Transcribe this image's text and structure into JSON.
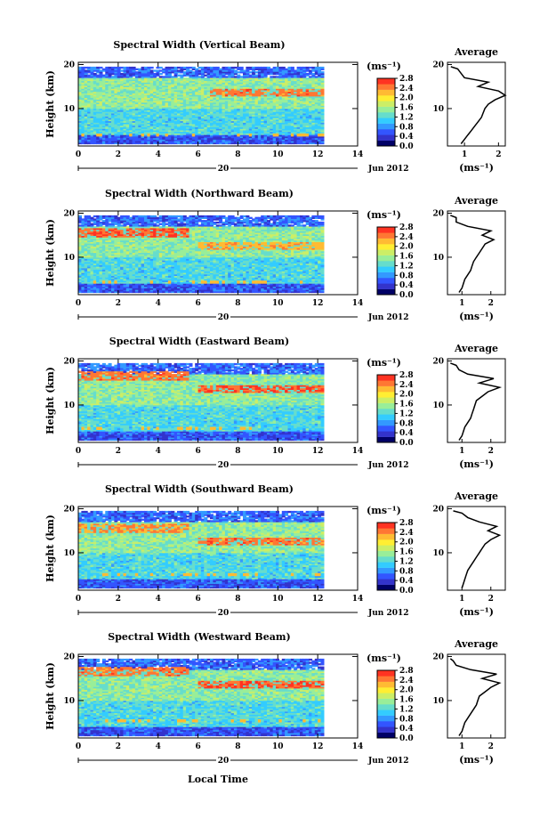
{
  "figure": {
    "xlabel": "Local Time",
    "date_label": "20",
    "month_year_label": "Jun 2012",
    "unit_label": "(ms⁻¹)",
    "ylabel": "Height (km)",
    "average_title": "Average",
    "average_xlabel": "(ms⁻¹)"
  },
  "colors": {
    "colormap": [
      "#000066",
      "#3333cc",
      "#3355ff",
      "#3399ff",
      "#33ccff",
      "#66ddcc",
      "#99ee99",
      "#ccee66",
      "#ffee33",
      "#ffbb33",
      "#ff7733",
      "#ff3322"
    ],
    "profile_line": "#000000"
  },
  "chart_data": [
    {
      "type": "heatmap",
      "title": "Spectral Width (Vertical Beam)",
      "xlabel": "Local Time",
      "ylabel": "Height (km)",
      "xlim": [
        0,
        14
      ],
      "ylim": [
        1.5,
        20.5
      ],
      "x_ticks": [
        0,
        2,
        4,
        6,
        8,
        10,
        12,
        14
      ],
      "y_ticks": [
        10,
        20
      ],
      "data_x_range": [
        0,
        12.3
      ],
      "data_y_range": [
        2,
        19.5
      ],
      "colorbar": {
        "label": "(ms⁻¹)",
        "range": [
          0.0,
          2.8
        ],
        "ticks": [
          0.0,
          0.4,
          0.8,
          1.2,
          1.6,
          2.0,
          2.4,
          2.8
        ]
      },
      "enhanced_layers": [
        {
          "y": 13.5,
          "x_start": 6.5,
          "x_end": 12.3,
          "value": 2.6
        }
      ],
      "average_profile": {
        "xlim": [
          0.5,
          2.2
        ],
        "x_ticks": [
          1,
          2
        ],
        "y_ticks": [
          10,
          20
        ],
        "height": [
          2,
          3,
          4,
          5,
          6,
          7,
          8,
          9,
          10,
          11,
          12,
          13,
          14,
          15,
          16,
          17,
          18,
          19,
          19.5
        ],
        "value": [
          0.9,
          1.0,
          1.1,
          1.2,
          1.3,
          1.4,
          1.5,
          1.55,
          1.6,
          1.7,
          1.9,
          2.2,
          2.0,
          1.4,
          1.7,
          1.0,
          0.9,
          0.8,
          0.6
        ]
      }
    },
    {
      "type": "heatmap",
      "title": "Spectral Width (Northward Beam)",
      "xlabel": "Local Time",
      "ylabel": "Height (km)",
      "xlim": [
        0,
        14
      ],
      "ylim": [
        1.5,
        20.5
      ],
      "x_ticks": [
        0,
        2,
        4,
        6,
        8,
        10,
        12,
        14
      ],
      "y_ticks": [
        10,
        20
      ],
      "data_x_range": [
        0,
        12.3
      ],
      "data_y_range": [
        2,
        19.5
      ],
      "colorbar": {
        "label": "(ms⁻¹)",
        "range": [
          0.0,
          2.8
        ],
        "ticks": [
          0.0,
          0.4,
          0.8,
          1.2,
          1.6,
          2.0,
          2.4,
          2.8
        ]
      },
      "enhanced_layers": [
        {
          "y": 15.5,
          "x_start": 0,
          "x_end": 5.5,
          "value": 2.7
        },
        {
          "y": 12.5,
          "x_start": 6,
          "x_end": 12.3,
          "value": 2.4
        }
      ],
      "average_profile": {
        "xlim": [
          0.5,
          2.5
        ],
        "x_ticks": [
          1,
          2
        ],
        "y_ticks": [
          10,
          20
        ],
        "height": [
          2,
          3,
          4,
          5,
          6,
          7,
          8,
          9,
          10,
          11,
          12,
          13,
          14,
          15,
          16,
          17,
          18,
          19,
          19.5
        ],
        "value": [
          0.9,
          1.0,
          1.05,
          1.1,
          1.2,
          1.3,
          1.35,
          1.4,
          1.5,
          1.6,
          1.7,
          1.8,
          2.1,
          1.7,
          2.0,
          1.2,
          0.8,
          0.8,
          0.6
        ]
      }
    },
    {
      "type": "heatmap",
      "title": "Spectral Width (Eastward Beam)",
      "xlabel": "Local Time",
      "ylabel": "Height (km)",
      "xlim": [
        0,
        14
      ],
      "ylim": [
        1.5,
        20.5
      ],
      "x_ticks": [
        0,
        2,
        4,
        6,
        8,
        10,
        12,
        14
      ],
      "y_ticks": [
        10,
        20
      ],
      "data_x_range": [
        0,
        12.3
      ],
      "data_y_range": [
        2,
        19.5
      ],
      "colorbar": {
        "label": "(ms⁻¹)",
        "range": [
          0.0,
          2.8
        ],
        "ticks": [
          0.0,
          0.4,
          0.8,
          1.2,
          1.6,
          2.0,
          2.4,
          2.8
        ]
      },
      "enhanced_layers": [
        {
          "y": 16.5,
          "x_start": 0,
          "x_end": 5.5,
          "value": 2.6
        },
        {
          "y": 13.5,
          "x_start": 6,
          "x_end": 12.3,
          "value": 2.7
        }
      ],
      "average_profile": {
        "xlim": [
          0.5,
          2.5
        ],
        "x_ticks": [
          1,
          2
        ],
        "y_ticks": [
          10,
          20
        ],
        "height": [
          2,
          3,
          4,
          5,
          6,
          7,
          8,
          9,
          10,
          11,
          12,
          13,
          14,
          15,
          16,
          17,
          18,
          19,
          19.5
        ],
        "value": [
          0.9,
          1.0,
          1.05,
          1.1,
          1.2,
          1.3,
          1.35,
          1.4,
          1.45,
          1.5,
          1.7,
          1.9,
          2.3,
          1.6,
          2.1,
          1.2,
          0.9,
          0.8,
          0.6
        ]
      }
    },
    {
      "type": "heatmap",
      "title": "Spectral Width (Southward Beam)",
      "xlabel": "Local Time",
      "ylabel": "Height (km)",
      "xlim": [
        0,
        14
      ],
      "ylim": [
        1.5,
        20.5
      ],
      "x_ticks": [
        0,
        2,
        4,
        6,
        8,
        10,
        12,
        14
      ],
      "y_ticks": [
        10,
        20
      ],
      "data_x_range": [
        0,
        12.3
      ],
      "data_y_range": [
        2,
        19.5
      ],
      "colorbar": {
        "label": "(ms⁻¹)",
        "range": [
          0.0,
          2.8
        ],
        "ticks": [
          0.0,
          0.4,
          0.8,
          1.2,
          1.6,
          2.0,
          2.4,
          2.8
        ]
      },
      "enhanced_layers": [
        {
          "y": 15.5,
          "x_start": 0,
          "x_end": 5.5,
          "value": 2.5
        },
        {
          "y": 12.5,
          "x_start": 6,
          "x_end": 12.3,
          "value": 2.6
        }
      ],
      "average_profile": {
        "xlim": [
          0.5,
          2.5
        ],
        "x_ticks": [
          1,
          2
        ],
        "y_ticks": [
          10,
          20
        ],
        "height": [
          2,
          3,
          4,
          5,
          6,
          7,
          8,
          9,
          10,
          11,
          12,
          13,
          14,
          15,
          16,
          17,
          18,
          19,
          19.5
        ],
        "value": [
          1.0,
          1.05,
          1.1,
          1.15,
          1.2,
          1.3,
          1.4,
          1.5,
          1.6,
          1.7,
          1.8,
          2.0,
          2.3,
          1.9,
          2.2,
          1.6,
          1.2,
          1.0,
          0.7
        ]
      }
    },
    {
      "type": "heatmap",
      "title": "Spectral Width (Westward Beam)",
      "xlabel": "Local Time",
      "ylabel": "Height (km)",
      "xlim": [
        0,
        14
      ],
      "ylim": [
        1.5,
        20.5
      ],
      "x_ticks": [
        0,
        2,
        4,
        6,
        8,
        10,
        12,
        14
      ],
      "y_ticks": [
        10,
        20
      ],
      "data_x_range": [
        0,
        12.3
      ],
      "data_y_range": [
        2,
        19.5
      ],
      "colorbar": {
        "label": "(ms⁻¹)",
        "range": [
          0.0,
          2.8
        ],
        "ticks": [
          0.0,
          0.4,
          0.8,
          1.2,
          1.6,
          2.0,
          2.4,
          2.8
        ]
      },
      "enhanced_layers": [
        {
          "y": 16.5,
          "x_start": 0,
          "x_end": 5.5,
          "value": 2.6
        },
        {
          "y": 13.5,
          "x_start": 6,
          "x_end": 12.3,
          "value": 2.7
        }
      ],
      "average_profile": {
        "xlim": [
          0.5,
          2.5
        ],
        "x_ticks": [
          1,
          2
        ],
        "y_ticks": [
          10,
          20
        ],
        "height": [
          2,
          3,
          4,
          5,
          6,
          7,
          8,
          9,
          10,
          11,
          12,
          13,
          14,
          15,
          16,
          17,
          18,
          19,
          19.5
        ],
        "value": [
          0.9,
          1.0,
          1.05,
          1.1,
          1.2,
          1.3,
          1.4,
          1.5,
          1.55,
          1.6,
          1.8,
          2.0,
          2.3,
          1.7,
          2.2,
          1.3,
          0.8,
          0.7,
          0.6
        ]
      }
    }
  ]
}
